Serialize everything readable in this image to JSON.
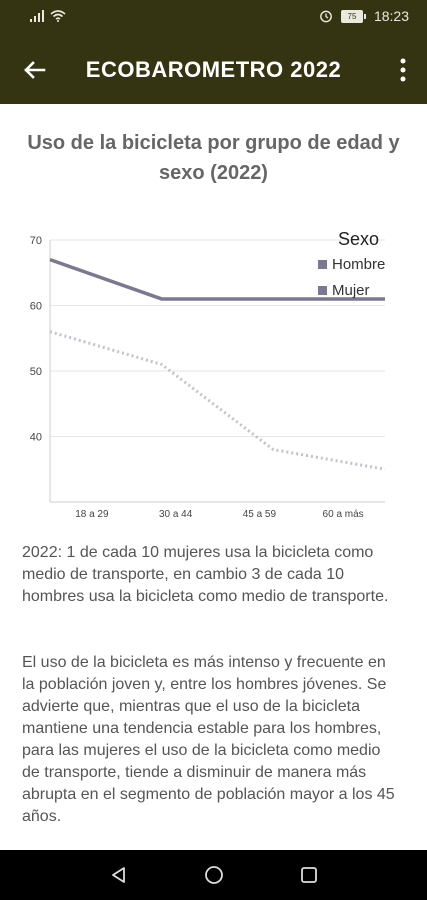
{
  "status_bar": {
    "time": "18:23",
    "battery": "75"
  },
  "app_bar": {
    "title": "ECOBAROMETRO 2022"
  },
  "chart_data": {
    "type": "line",
    "title": "Uso de la bicicleta por grupo de edad y sexo (2022)",
    "categories": [
      "18 a 29",
      "30 a 44",
      "45 a 59",
      "60 a más"
    ],
    "ylim": [
      30,
      70
    ],
    "yticks": [
      40,
      50,
      60,
      70
    ],
    "legend_title": "Sexo",
    "legend_position": "top-right",
    "grid": true,
    "series": [
      {
        "name": "Hombre",
        "color": "#7d7891",
        "style": "solid",
        "values": [
          67,
          61,
          61,
          61
        ]
      },
      {
        "name": "Mujer",
        "color": "#c4c1cf",
        "style": "dotted",
        "values": [
          56,
          51,
          38,
          35
        ]
      }
    ]
  },
  "paragraphs": [
    "2022: 1 de cada 10 mujeres usa la bicicleta como medio de transporte, en cambio 3 de cada 10 hombres usa la bicicleta como medio de transporte.",
    "El uso de la bicicleta es más intenso y frecuente en la población joven y, entre los hombres jóvenes. Se advierte que, mientras que el uso de la bicicleta mantiene una tendencia estable para los hombres, para las mujeres el uso de la bicicleta como medio de transporte, tiende a disminuir de manera más abrupta en el segmento de población mayor a los 45 años."
  ],
  "icons": {
    "back": "arrow-left-icon",
    "menu": "more-vertical-icon",
    "nav": [
      "back-triangle-icon",
      "home-circle-icon",
      "recents-square-icon"
    ]
  }
}
